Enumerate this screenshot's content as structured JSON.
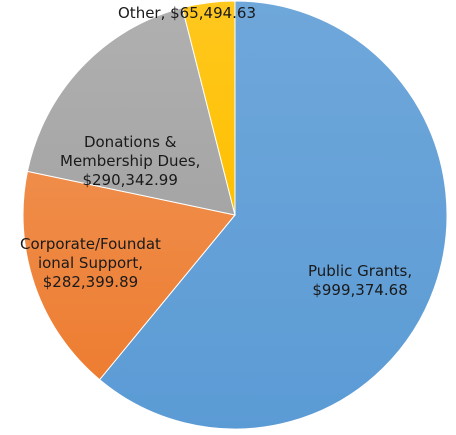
{
  "chart_data": {
    "type": "pie",
    "slices": [
      {
        "name": "Public Grants",
        "value": 999374.68,
        "value_label": "$999,374.68",
        "label_lines": [
          "Public Grants,",
          "$999,374.68"
        ],
        "color": "#5b9bd5"
      },
      {
        "name": "Corporate/Foundational Support",
        "value": 282399.89,
        "value_label": "$282,399.89",
        "label_lines": [
          "Corporate/Foundat",
          "ional Support,",
          "$282,399.89"
        ],
        "color": "#ed7d31"
      },
      {
        "name": "Donations & Membership Dues",
        "value": 290342.99,
        "value_label": "$290,342.99",
        "label_lines": [
          "Donations &",
          "Membership Dues,",
          "$290,342.99"
        ],
        "color": "#a5a5a5"
      },
      {
        "name": "Other",
        "value": 65494.63,
        "value_label": "$65,494.63",
        "label_lines": [
          "Other,  $65,494.63"
        ],
        "color": "#ffc000"
      }
    ],
    "start_angle": "12 o'clock",
    "direction": "clockwise",
    "legend": "none",
    "data_labels": "category name and value"
  }
}
